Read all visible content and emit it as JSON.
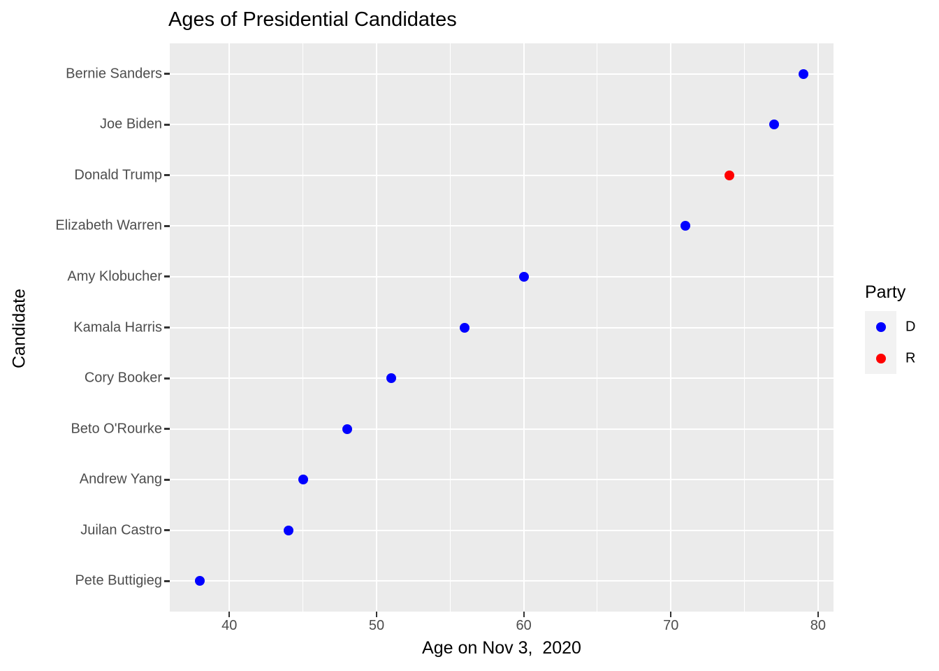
{
  "title": "Ages of Presidential Candidates",
  "x_axis": {
    "label": "Age on Nov 3,  2020",
    "ticks": [
      40,
      50,
      60,
      70,
      80
    ],
    "minor_ticks": [
      45,
      55,
      65,
      75
    ]
  },
  "y_axis": {
    "label": "Candidate"
  },
  "legend": {
    "title": "Party",
    "items": [
      {
        "label": "D",
        "color": "#0000FF"
      },
      {
        "label": "R",
        "color": "#FF0000"
      }
    ]
  },
  "colors": {
    "panel_background": "#EBEBEB",
    "gridline": "#FFFFFF",
    "tick_mark": "#333333",
    "tick_label": "#4D4D4D",
    "legend_key_background": "#F2F2F2",
    "democrat": "#0000FF",
    "republican": "#FF0000"
  },
  "chart_data": {
    "type": "scatter",
    "title": "Ages of Presidential Candidates",
    "xlabel": "Age on Nov 3,  2020",
    "ylabel": "Candidate",
    "xlim": [
      36,
      81
    ],
    "x_ticks": [
      40,
      50,
      60,
      70,
      80
    ],
    "x_minor_ticks": [
      45,
      55,
      65,
      75
    ],
    "grid": true,
    "legend_title": "Party",
    "legend_position": "right",
    "categories_top_to_bottom": [
      "Bernie Sanders",
      "Joe Biden",
      "Donald Trump",
      "Elizabeth Warren",
      "Amy Klobucher",
      "Kamala Harris",
      "Cory Booker",
      "Beto O'Rourke",
      "Andrew Yang",
      "Juilan Castro",
      "Pete Buttigieg"
    ],
    "points": [
      {
        "candidate": "Bernie Sanders",
        "age": 79,
        "party": "D"
      },
      {
        "candidate": "Joe Biden",
        "age": 77,
        "party": "D"
      },
      {
        "candidate": "Donald Trump",
        "age": 74,
        "party": "R"
      },
      {
        "candidate": "Elizabeth Warren",
        "age": 71,
        "party": "D"
      },
      {
        "candidate": "Amy Klobucher",
        "age": 60,
        "party": "D"
      },
      {
        "candidate": "Kamala Harris",
        "age": 56,
        "party": "D"
      },
      {
        "candidate": "Cory Booker",
        "age": 51,
        "party": "D"
      },
      {
        "candidate": "Beto O'Rourke",
        "age": 48,
        "party": "D"
      },
      {
        "candidate": "Andrew Yang",
        "age": 45,
        "party": "D"
      },
      {
        "candidate": "Juilan Castro",
        "age": 44,
        "party": "D"
      },
      {
        "candidate": "Pete Buttigieg",
        "age": 38,
        "party": "D"
      }
    ],
    "party_colors": {
      "D": "#0000FF",
      "R": "#FF0000"
    }
  }
}
